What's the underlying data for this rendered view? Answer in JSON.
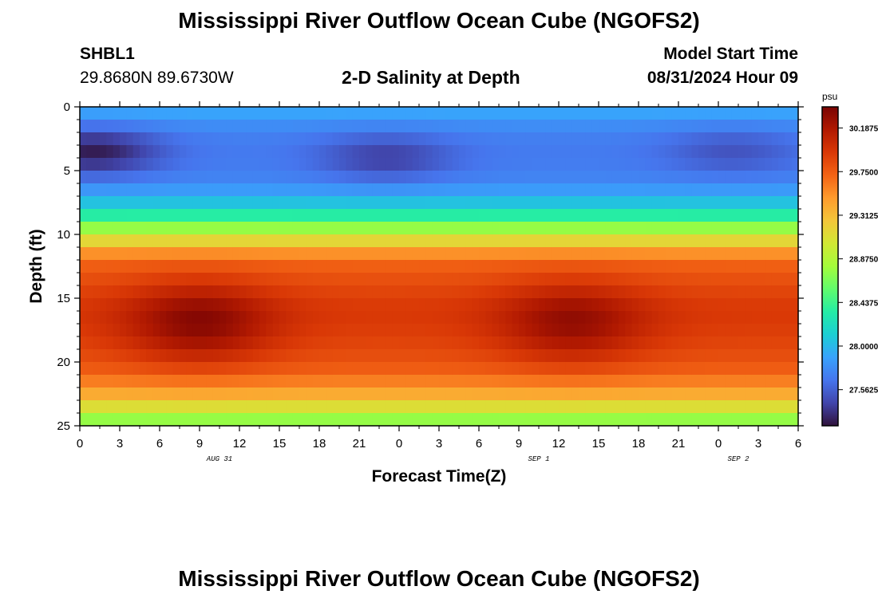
{
  "header": {
    "title": "Mississippi River Outflow Ocean Cube (NGOFS2)",
    "station_id": "SHBL1",
    "station_coords": "29.8680N  89.6730W",
    "plot_title": "2-D Salinity at Depth",
    "model_start_label": "Model Start Time",
    "model_start_value": "08/31/2024 Hour 09"
  },
  "footer": {
    "title": "Mississippi River Outflow Ocean Cube (NGOFS2)"
  },
  "chart_data": {
    "type": "heatmap",
    "title": "2-D Salinity at Depth",
    "xlabel": "Forecast Time(Z)",
    "ylabel": "Depth (ft)",
    "x_ticks": [
      "0",
      "3",
      "6",
      "9",
      "12",
      "15",
      "18",
      "21",
      "0",
      "3",
      "6",
      "9",
      "12",
      "15",
      "18",
      "21",
      "0",
      "3",
      "6"
    ],
    "date_labels": [
      {
        "label": "AUG 31",
        "tick_index": 4
      },
      {
        "label": "SEP 1",
        "tick_index": 12
      },
      {
        "label": "SEP 2",
        "tick_index": 17
      }
    ],
    "ylim": [
      0,
      25
    ],
    "y_ticks": [
      0,
      5,
      10,
      15,
      20,
      25
    ],
    "y_reversed": true,
    "x_hours_range": [
      0,
      54
    ],
    "colorbar": {
      "unit": "psu",
      "range": [
        27.2,
        30.4
      ],
      "labels": [
        "30.1875",
        "29.7500",
        "29.3125",
        "28.8750",
        "28.4375",
        "28.0000",
        "27.5625"
      ],
      "colormap": [
        "#30123b",
        "#4145ab",
        "#4675ed",
        "#39a2fc",
        "#1bcfd4",
        "#24eca6",
        "#61fc6c",
        "#a4fc3b",
        "#d1e834",
        "#f3c63a",
        "#fe9b2d",
        "#f36315",
        "#d93806",
        "#b11901",
        "#7a0403"
      ]
    },
    "profile_depths_ft": [
      0,
      2,
      4,
      6,
      7,
      8,
      9,
      10,
      11,
      12,
      14,
      16,
      18,
      20,
      21,
      22,
      23,
      24,
      25
    ],
    "profile_base_psu": [
      27.95,
      27.72,
      27.68,
      27.75,
      27.95,
      28.15,
      28.55,
      28.95,
      29.35,
      29.7,
      29.85,
      29.95,
      29.9,
      29.8,
      29.7,
      29.5,
      29.3,
      28.9,
      28.6
    ],
    "high_salinity_events": [
      {
        "hour": 9,
        "peak_depth_ft": 17,
        "peak_psu": 30.35
      },
      {
        "hour": 37,
        "peak_depth_ft": 17,
        "peak_psu": 30.3
      }
    ],
    "low_salinity_events": [
      {
        "hour": 1,
        "peak_depth_ft": 3.5,
        "min_psu": 27.25
      },
      {
        "hour": 23,
        "peak_depth_ft": 4,
        "min_psu": 27.4
      },
      {
        "hour": 49,
        "peak_depth_ft": 3.5,
        "min_psu": 27.5
      }
    ]
  }
}
